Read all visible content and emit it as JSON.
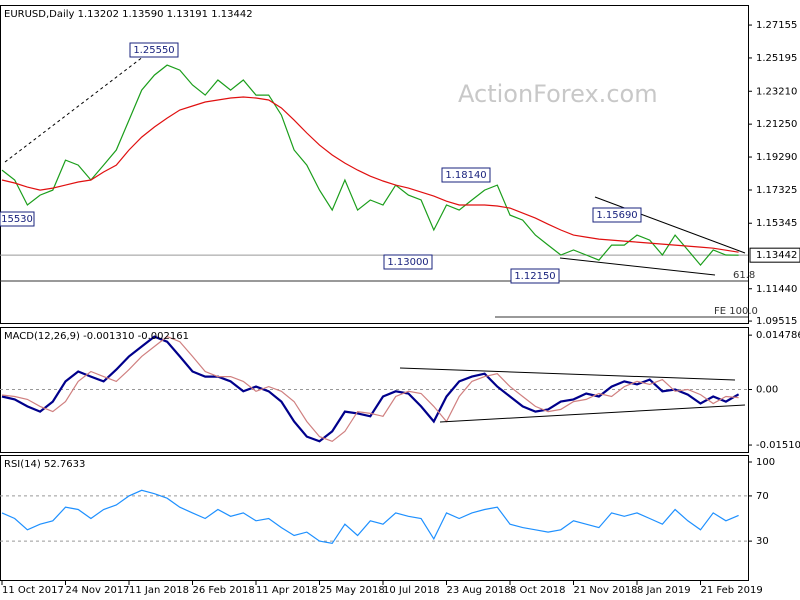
{
  "watermark": "ActionForex.com",
  "chart_data": [
    {
      "type": "line",
      "title": "EURUSD,Daily  1.13202 1.13590 1.13191 1.13442",
      "categories": [
        "11 Oct 2017",
        null,
        null,
        null,
        null,
        "24 Nov 2017",
        null,
        null,
        null,
        null,
        "11 Jan 2018",
        null,
        null,
        null,
        null,
        "26 Feb 2018",
        null,
        null,
        null,
        null,
        "11 Apr 2018",
        null,
        null,
        null,
        null,
        "25 May 2018",
        null,
        null,
        null,
        null,
        "10 Jul 2018",
        null,
        null,
        null,
        null,
        "23 Aug 2018",
        null,
        null,
        null,
        null,
        "8 Oct 2018",
        null,
        null,
        null,
        null,
        "21 Nov 2018",
        null,
        null,
        null,
        null,
        "8 Jan 2019",
        null,
        null,
        null,
        null,
        "21 Feb 2019",
        null,
        null,
        null
      ],
      "series": [
        {
          "color": "#1b9e1b",
          "values": [
            1.1851,
            1.1792,
            1.1643,
            1.1702,
            1.1732,
            1.1911,
            1.1881,
            1.1792,
            1.1881,
            1.1971,
            1.2149,
            1.2328,
            1.2417,
            1.2477,
            1.2447,
            1.2358,
            1.2298,
            1.2388,
            1.2328,
            1.2388,
            1.2298,
            1.2298,
            1.2179,
            1.1971,
            1.1881,
            1.1732,
            1.1613,
            1.1792,
            1.1613,
            1.1673,
            1.1643,
            1.1762,
            1.1702,
            1.1673,
            1.1494,
            1.1643,
            1.1613,
            1.1673,
            1.1732,
            1.1762,
            1.1583,
            1.1553,
            1.1464,
            1.1404,
            1.1345,
            1.1375,
            1.1345,
            1.1315,
            1.1404,
            1.1404,
            1.1464,
            1.1434,
            1.1345,
            1.1464,
            1.1375,
            1.1285,
            1.1375,
            1.1345,
            1.1344
          ]
        },
        {
          "color": "#e01010",
          "values": [
            1.1792,
            1.1774,
            1.175,
            1.1732,
            1.1744,
            1.1762,
            1.178,
            1.1792,
            1.184,
            1.1881,
            1.1971,
            1.2048,
            1.2108,
            1.2161,
            1.2209,
            1.2233,
            1.2257,
            1.2269,
            1.2281,
            1.2287,
            1.2281,
            1.2269,
            1.2221,
            1.2149,
            1.2072,
            1.2,
            1.1941,
            1.1893,
            1.1851,
            1.1815,
            1.1786,
            1.1762,
            1.1744,
            1.172,
            1.1696,
            1.1666,
            1.1643,
            1.1643,
            1.1643,
            1.1637,
            1.1625,
            1.1595,
            1.1565,
            1.1529,
            1.1494,
            1.1464,
            1.1452,
            1.144,
            1.1434,
            1.1428,
            1.1422,
            1.1416,
            1.141,
            1.1404,
            1.1398,
            1.1392,
            1.1386,
            1.1374,
            1.1362
          ]
        }
      ],
      "ylim": [
        1.094,
        1.2835
      ],
      "yticks": [
        1.27155,
        1.25195,
        {
          "value": 1.2321,
          "label": "1.23210"
        },
        {
          "value": 1.2125,
          "label": "1.21250"
        },
        {
          "value": 1.1929,
          "label": "1.19290"
        },
        1.17325,
        1.15345,
        {
          "value": 1.1144,
          "label": "1.11440"
        },
        1.09515
      ],
      "last": 1.13442,
      "annotations": [
        "1.25550",
        "15530",
        "1.13000",
        "1.18140",
        "1.12150",
        "1.15690",
        "61.8",
        "FE 100.0"
      ]
    },
    {
      "type": "line",
      "title": "MACD(12,26,9) -0.001310 -0.002161",
      "series": [
        {
          "color": "#00008b",
          "values": [
            -0.0019,
            -0.0027,
            -0.0046,
            -0.006,
            -0.0033,
            0.0022,
            0.0049,
            0.0035,
            0.0022,
            0.0054,
            0.009,
            0.0117,
            0.0144,
            0.013,
            0.009,
            0.0049,
            0.0035,
            0.0035,
            0.0022,
            -0.0005,
            0.0008,
            -0.0005,
            -0.0033,
            -0.0087,
            -0.0128,
            -0.0141,
            -0.0114,
            -0.006,
            -0.0065,
            -0.0073,
            -0.0019,
            -0.0005,
            -0.0011,
            -0.0046,
            -0.0087,
            -0.0019,
            0.0022,
            0.0035,
            0.0043,
            0.0008,
            -0.0019,
            -0.0046,
            -0.006,
            -0.0054,
            -0.0033,
            -0.0027,
            -0.0011,
            -0.0019,
            0.0008,
            0.0022,
            0.0014,
            0.0027,
            -0.0005,
            0,
            -0.0014,
            -0.0038,
            -0.0019,
            -0.0033,
            -0.0013
          ]
        },
        {
          "color": "#d08080",
          "values": [
            -0.0015,
            -0.0019,
            -0.0027,
            -0.0046,
            -0.006,
            -0.0033,
            0.0022,
            0.0049,
            0.0035,
            0.0022,
            0.0054,
            0.009,
            0.0117,
            0.0144,
            0.013,
            0.009,
            0.0049,
            0.0035,
            0.0035,
            0.0022,
            -0.0005,
            0.0008,
            -0.0005,
            -0.0033,
            -0.0087,
            -0.0128,
            -0.0141,
            -0.0114,
            -0.006,
            -0.0065,
            -0.0073,
            -0.0019,
            -0.0005,
            -0.0011,
            -0.0046,
            -0.0087,
            -0.0019,
            0.0022,
            0.0035,
            0.0043,
            0.0008,
            -0.0019,
            -0.0046,
            -0.006,
            -0.0054,
            -0.0033,
            -0.0027,
            -0.0011,
            -0.0019,
            0.0008,
            0.0022,
            0.0014,
            0.0027,
            -0.0005,
            0,
            -0.0014,
            -0.0038,
            -0.0019,
            -0.0022
          ]
        }
      ],
      "ylim": [
        -0.017,
        0.017
      ],
      "yticks": [
        0.014786,
        {
          "value": 0,
          "label": "0.00"
        },
        -0.015107
      ],
      "levels": [
        0
      ]
    },
    {
      "type": "line",
      "title": "RSI(14) 52.7633",
      "series": [
        {
          "color": "#1e90ff",
          "values": [
            55,
            50,
            40,
            45,
            48,
            60,
            58,
            50,
            58,
            62,
            70,
            75,
            72,
            68,
            60,
            55,
            50,
            58,
            52,
            55,
            48,
            50,
            42,
            35,
            38,
            30,
            28,
            45,
            35,
            48,
            45,
            55,
            52,
            50,
            32,
            55,
            50,
            55,
            58,
            60,
            45,
            42,
            40,
            38,
            40,
            48,
            45,
            42,
            55,
            52,
            55,
            50,
            45,
            58,
            48,
            40,
            55,
            48,
            52.7633
          ]
        }
      ],
      "ylim": [
        -4.4,
        106.2
      ],
      "yticks": [
        100,
        70,
        30
      ],
      "levels": [
        70,
        30
      ]
    }
  ]
}
